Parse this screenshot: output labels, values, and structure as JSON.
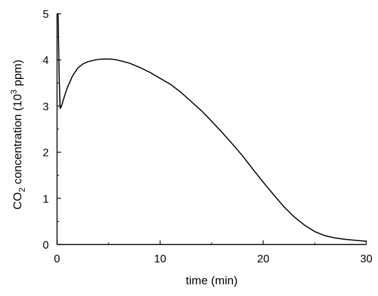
{
  "chart_data": {
    "type": "line",
    "xlabel": "time (min)",
    "ylabel": "CO2 concentration (10^3 ppm)",
    "ylabel_parts": {
      "pre": "CO",
      "sub": "2",
      "mid": " concentration (10",
      "sup": "3",
      "post": " ppm)"
    },
    "xlim": [
      0,
      30
    ],
    "ylim": [
      0,
      5
    ],
    "xticks": [
      "0",
      "10",
      "20",
      "30"
    ],
    "yticks": [
      "0",
      "1",
      "2",
      "3",
      "4",
      "5"
    ],
    "grid": false,
    "series": [
      {
        "color": "#000000",
        "x": [
          0.0,
          0.1,
          0.2,
          0.3,
          0.4,
          0.5,
          0.7,
          1.0,
          1.5,
          2.0,
          2.5,
          3.0,
          3.5,
          4.0,
          4.5,
          5.0,
          5.5,
          6.0,
          7.0,
          8.0,
          9.0,
          10.0,
          11.0,
          12.0,
          13.0,
          14.0,
          15.0,
          16.0,
          17.0,
          18.0,
          19.0,
          20.0,
          21.0,
          22.0,
          23.0,
          24.0,
          25.0,
          26.0,
          27.0,
          28.0,
          29.0,
          30.0
        ],
        "y": [
          5.0,
          5.0,
          3.7,
          2.95,
          2.98,
          3.05,
          3.2,
          3.4,
          3.65,
          3.82,
          3.91,
          3.96,
          3.99,
          4.01,
          4.02,
          4.02,
          4.01,
          3.99,
          3.93,
          3.84,
          3.73,
          3.6,
          3.47,
          3.3,
          3.1,
          2.9,
          2.67,
          2.43,
          2.18,
          1.92,
          1.63,
          1.35,
          1.08,
          0.82,
          0.6,
          0.42,
          0.28,
          0.19,
          0.14,
          0.11,
          0.09,
          0.07
        ]
      }
    ]
  }
}
